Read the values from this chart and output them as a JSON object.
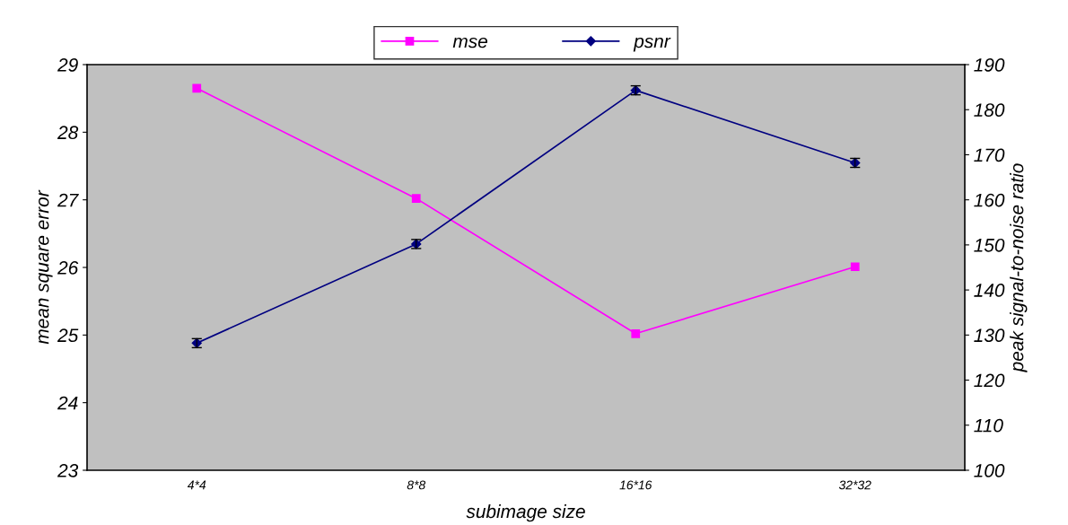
{
  "chart_data": {
    "type": "line",
    "xlabel": "subimage size",
    "ylabel": "mean square error",
    "y2label": "peak signal-to-noise ratio",
    "categories": [
      "4*4",
      "8*8",
      "16*16",
      "32*32"
    ],
    "series": [
      {
        "name": "mse",
        "color": "#ff00ff",
        "values": [
          28.65,
          27.02,
          25.02,
          26.01
        ],
        "marker": "square"
      },
      {
        "name": "psnr",
        "color": "#000080",
        "values": [
          128.2,
          150.2,
          184.3,
          168.2
        ],
        "axis": "y2",
        "marker": "diamond",
        "errors": [
          1,
          1,
          1,
          1
        ]
      }
    ],
    "ylim": [
      23,
      29
    ],
    "yticks": [
      23,
      24,
      25,
      26,
      27,
      28,
      29
    ],
    "y2lim": [
      100,
      190
    ],
    "y2ticks": [
      100,
      110,
      120,
      130,
      140,
      150,
      160,
      170,
      180,
      190
    ],
    "grid": false,
    "legend": "top"
  }
}
